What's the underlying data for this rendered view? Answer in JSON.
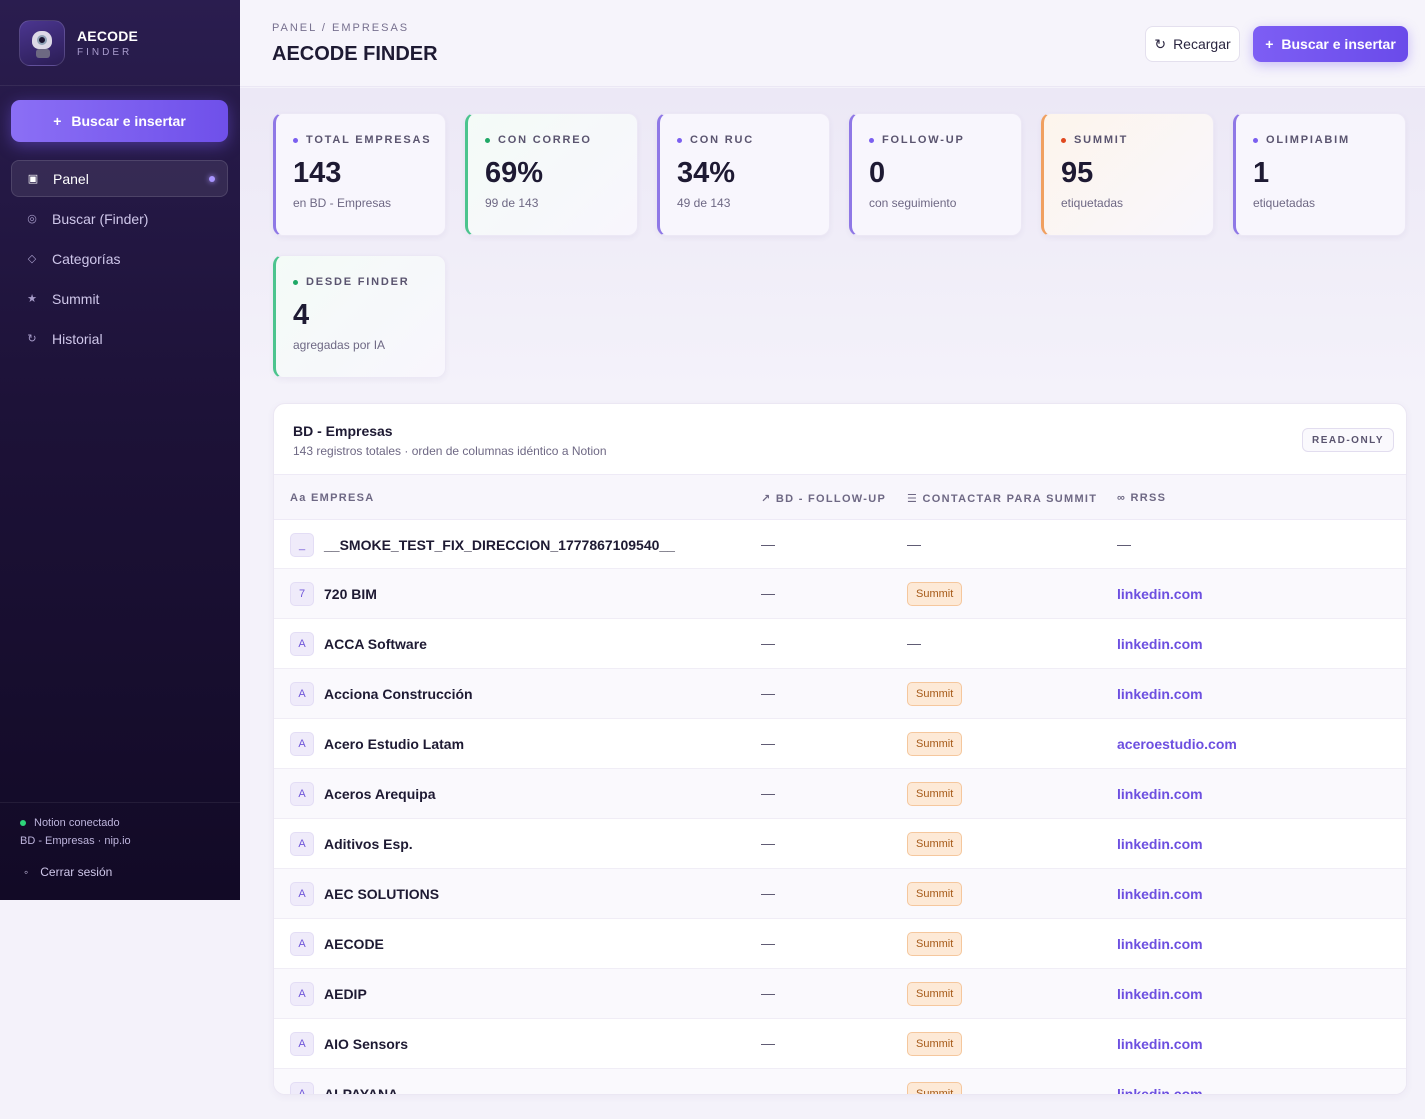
{
  "brand": {
    "title": "AECODE",
    "subtitle": "FINDER"
  },
  "sidebar": {
    "cta_label": "Buscar e insertar",
    "cta_icon": "+",
    "items": [
      {
        "label": "Panel",
        "icon": "▣",
        "active": true
      },
      {
        "label": "Buscar (Finder)",
        "icon": "◎"
      },
      {
        "label": "Categorías",
        "icon": "◇"
      },
      {
        "label": "Summit",
        "icon": "★"
      },
      {
        "label": "Historial",
        "icon": "↻"
      }
    ],
    "status": "Notion conectado",
    "status_sub": "BD - Empresas · nip.io",
    "logout": "Cerrar sesión",
    "logout_icon": "◦"
  },
  "header": {
    "breadcrumb": "PANEL / EMPRESAS",
    "title": "AECODE FINDER",
    "reload_label": "Recargar",
    "reload_icon": "↻",
    "primary_label": "Buscar e insertar",
    "primary_icon": "+"
  },
  "stats": [
    {
      "label": "TOTAL EMPRESAS",
      "value": "143",
      "sub": "en BD - Empresas",
      "dot": "#7b5ff0"
    },
    {
      "label": "CON CORREO",
      "value": "69%",
      "sub": "99 de 143",
      "dot": "#1fa866"
    },
    {
      "label": "CON RUC",
      "value": "34%",
      "sub": "49 de 143",
      "dot": "#7b5ff0"
    },
    {
      "label": "FOLLOW-UP",
      "value": "0",
      "sub": "con seguimiento",
      "dot": "#7b5ff0"
    },
    {
      "label": "SUMMIT",
      "value": "95",
      "sub": "etiquetadas",
      "dot": "#e0491f"
    },
    {
      "label": "OLIMPIABIM",
      "value": "1",
      "sub": "etiquetadas",
      "dot": "#7b5ff0"
    },
    {
      "label": "DESDE FINDER",
      "value": "4",
      "sub": "agregadas por IA",
      "dot": "#1fa866"
    }
  ],
  "table": {
    "title": "BD - Empresas",
    "subtitle": "143 registros totales · orden de columnas idéntico a Notion",
    "badge": "READ-ONLY",
    "columns": [
      "Aa EMPRESA",
      "↗ BD - FOLLOW-UP",
      "☰ CONTACTAR PARA SUMMIT",
      "∞ RRSS"
    ],
    "rows": [
      {
        "avatar": "_",
        "name": "__SMOKE_TEST_FIX_DIRECCION_1777867109540__",
        "followup": "—",
        "summit": "",
        "rrss": "—"
      },
      {
        "avatar": "7",
        "name": "720 BIM",
        "followup": "—",
        "summit": "Summit",
        "rrss": "linkedin.com"
      },
      {
        "avatar": "A",
        "name": "ACCA Software",
        "followup": "—",
        "summit": "",
        "rrss": "linkedin.com"
      },
      {
        "avatar": "A",
        "name": "Acciona Construcción",
        "followup": "—",
        "summit": "Summit",
        "rrss": "linkedin.com"
      },
      {
        "avatar": "A",
        "name": "Acero Estudio Latam",
        "followup": "—",
        "summit": "Summit",
        "rrss": "aceroestudio.com"
      },
      {
        "avatar": "A",
        "name": "Aceros Arequipa",
        "followup": "—",
        "summit": "Summit",
        "rrss": "linkedin.com"
      },
      {
        "avatar": "A",
        "name": "Aditivos Esp.",
        "followup": "—",
        "summit": "Summit",
        "rrss": "linkedin.com"
      },
      {
        "avatar": "A",
        "name": "AEC SOLUTIONS",
        "followup": "—",
        "summit": "Summit",
        "rrss": "linkedin.com"
      },
      {
        "avatar": "A",
        "name": "AECODE",
        "followup": "—",
        "summit": "Summit",
        "rrss": "linkedin.com"
      },
      {
        "avatar": "A",
        "name": "AEDIP",
        "followup": "—",
        "summit": "Summit",
        "rrss": "linkedin.com"
      },
      {
        "avatar": "A",
        "name": "AIO Sensors",
        "followup": "—",
        "summit": "Summit",
        "rrss": "linkedin.com"
      },
      {
        "avatar": "A",
        "name": "ALPAYANA",
        "followup": "—",
        "summit": "Summit",
        "rrss": "linkedin.com"
      }
    ]
  }
}
